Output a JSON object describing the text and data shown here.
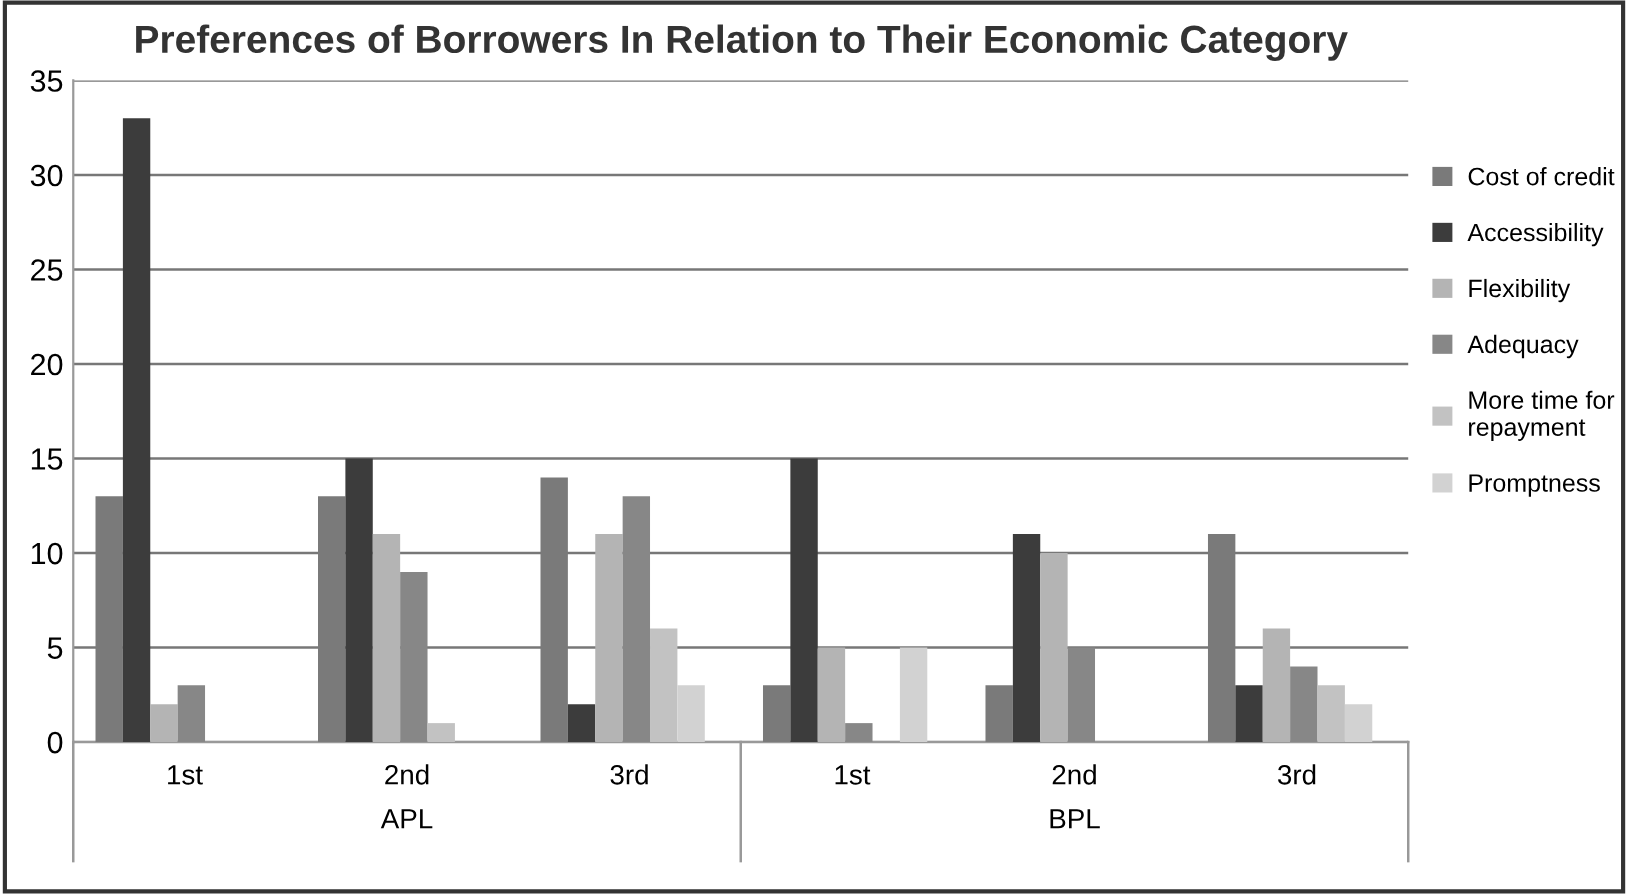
{
  "chart_data": {
    "type": "bar",
    "title": "Preferences of Borrowers In Relation to Their Economic Category",
    "categories": [
      "1st",
      "2nd",
      "3rd",
      "1st",
      "2nd",
      "3rd"
    ],
    "series": [
      {
        "name": "Cost of credit",
        "color": "#7a7a7a",
        "values": [
          13,
          13,
          14,
          3,
          3,
          11
        ]
      },
      {
        "name": "Accessibility",
        "color": "#3c3c3c",
        "values": [
          33,
          15,
          2,
          15,
          11,
          3
        ]
      },
      {
        "name": "Flexibility",
        "color": "#b4b4b4",
        "values": [
          2,
          11,
          11,
          5,
          10,
          6
        ]
      },
      {
        "name": "Adequacy",
        "color": "#878787",
        "values": [
          3,
          9,
          13,
          1,
          5,
          4
        ]
      },
      {
        "name": "More time for\nrepayment",
        "color": "#c2c2c2",
        "values": [
          null,
          1,
          6,
          null,
          null,
          3
        ]
      },
      {
        "name": "Promptness",
        "color": "#d2d2d2",
        "values": [
          null,
          null,
          3,
          5,
          null,
          2
        ]
      }
    ],
    "annotations": [
      "APL",
      "BPL"
    ],
    "ylim": [
      0,
      35
    ],
    "yticks": [
      0,
      5,
      10,
      15,
      20,
      25,
      30,
      35
    ],
    "grid": "y",
    "legend": "right"
  }
}
